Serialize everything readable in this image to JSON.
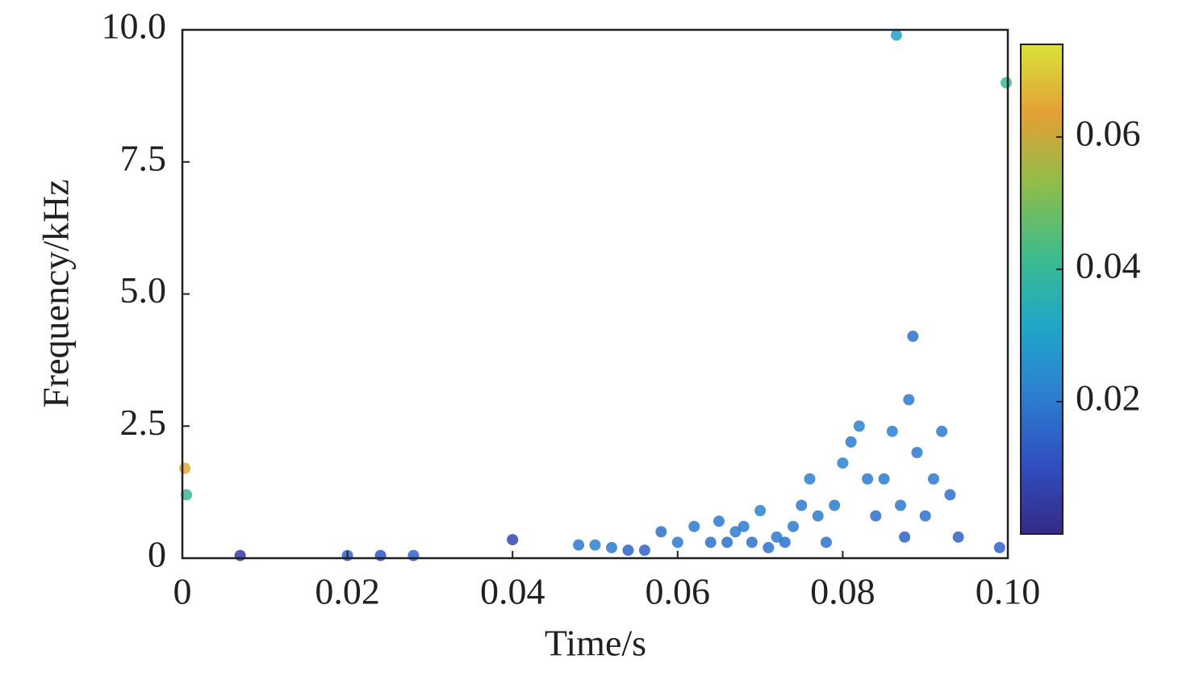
{
  "chart_data": {
    "type": "scatter",
    "xlabel": "Time/s",
    "ylabel": "Frequency/kHz",
    "xlim": [
      0,
      0.1
    ],
    "xticks": [
      0,
      0.02,
      0.04,
      0.06,
      0.08,
      {
        "value": 0.1,
        "label": "0.10"
      }
    ],
    "ylim": [
      0,
      10
    ],
    "yticks": [
      0,
      2.5,
      {
        "value": 5,
        "label": "5.0"
      },
      7.5,
      {
        "value": 10,
        "label": "10.0"
      }
    ],
    "clim": [
      0,
      0.074
    ],
    "cticks": [
      0.02,
      0.04,
      0.06
    ],
    "colormap": [
      "#352a87",
      "#2f4fbf",
      "#2c7fd0",
      "#1fa8c8",
      "#3fbb8a",
      "#8ebd4a",
      "#e3a035",
      "#d8e23a"
    ],
    "x": [
      0.0003,
      0.0005,
      0.007,
      0.02,
      0.024,
      0.028,
      0.04,
      0.048,
      0.05,
      0.052,
      0.054,
      0.056,
      0.058,
      0.06,
      0.062,
      0.064,
      0.065,
      0.066,
      0.067,
      0.068,
      0.069,
      0.07,
      0.071,
      0.072,
      0.073,
      0.074,
      0.075,
      0.076,
      0.077,
      0.078,
      0.079,
      0.08,
      0.081,
      0.082,
      0.083,
      0.084,
      0.085,
      0.086,
      0.0865,
      0.087,
      0.0875,
      0.088,
      0.0885,
      0.089,
      0.09,
      0.091,
      0.092,
      0.093,
      0.094,
      0.099,
      0.0998
    ],
    "y": [
      1.7,
      1.2,
      0.05,
      0.05,
      0.05,
      0.05,
      0.35,
      0.25,
      0.25,
      0.2,
      0.15,
      0.15,
      0.5,
      0.3,
      0.6,
      0.3,
      0.7,
      0.3,
      0.5,
      0.6,
      0.3,
      0.9,
      0.2,
      0.4,
      0.3,
      0.6,
      1.0,
      1.5,
      0.8,
      0.3,
      1.0,
      1.8,
      2.2,
      2.5,
      1.5,
      0.8,
      1.5,
      2.4,
      9.9,
      1.0,
      0.4,
      3.0,
      4.2,
      2.0,
      0.8,
      1.5,
      2.4,
      1.2,
      0.4,
      0.2,
      9.0
    ],
    "z": [
      0.065,
      0.04,
      0.005,
      0.015,
      0.012,
      0.015,
      0.008,
      0.02,
      0.022,
      0.02,
      0.015,
      0.015,
      0.018,
      0.02,
      0.02,
      0.018,
      0.02,
      0.018,
      0.02,
      0.02,
      0.018,
      0.022,
      0.018,
      0.02,
      0.018,
      0.02,
      0.02,
      0.022,
      0.02,
      0.018,
      0.02,
      0.022,
      0.02,
      0.022,
      0.02,
      0.018,
      0.02,
      0.022,
      0.03,
      0.02,
      0.015,
      0.02,
      0.018,
      0.02,
      0.018,
      0.02,
      0.02,
      0.018,
      0.015,
      0.015,
      0.04
    ]
  }
}
